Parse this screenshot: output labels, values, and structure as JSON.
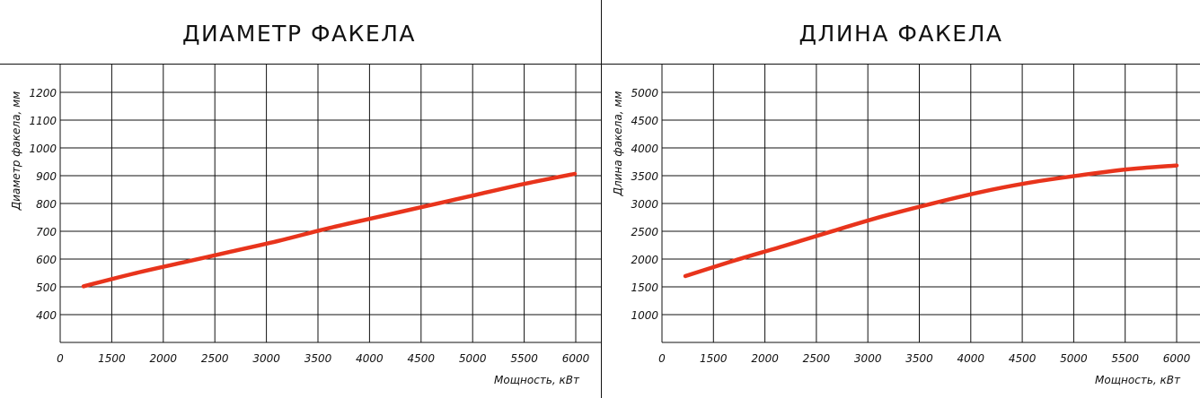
{
  "chart_data": [
    {
      "type": "line",
      "title": "ДИАМЕТР ФАКЕЛА",
      "xlabel": "Мощность, кВт",
      "ylabel": "Диаметр факела, мм",
      "x_ticks": [
        "0",
        "1500",
        "2000",
        "2500",
        "3000",
        "3500",
        "4000",
        "4500",
        "5000",
        "5500",
        "6000"
      ],
      "y_ticks": [
        "400",
        "500",
        "600",
        "700",
        "800",
        "900",
        "1000",
        "1100",
        "1200"
      ],
      "series": [
        {
          "color": "#e8341c",
          "x": [
            1000,
            1500,
            2000,
            2500,
            3000,
            3500,
            4000,
            4500,
            5000,
            5500,
            6000
          ],
          "y": [
            505,
            550,
            590,
            630,
            670,
            715,
            755,
            795,
            835,
            875,
            910
          ]
        }
      ],
      "grid": true
    },
    {
      "type": "line",
      "title": "ДЛИНА ФАКЕЛА",
      "xlabel": "Мощность, кВт",
      "ylabel": "Длина факела, мм",
      "x_ticks": [
        "0",
        "1500",
        "2000",
        "2500",
        "3000",
        "3500",
        "4000",
        "4500",
        "5000",
        "5500",
        "6000"
      ],
      "y_ticks": [
        "1000",
        "1500",
        "2000",
        "2500",
        "3000",
        "3500",
        "4000",
        "4500",
        "5000"
      ],
      "series": [
        {
          "color": "#e8341c",
          "x": [
            1000,
            1500,
            2000,
            2500,
            3000,
            3500,
            4000,
            4500,
            5000,
            5500,
            6000
          ],
          "y": [
            1710,
            1990,
            2250,
            2520,
            2780,
            3010,
            3220,
            3390,
            3520,
            3630,
            3700
          ]
        }
      ],
      "grid": true
    }
  ]
}
